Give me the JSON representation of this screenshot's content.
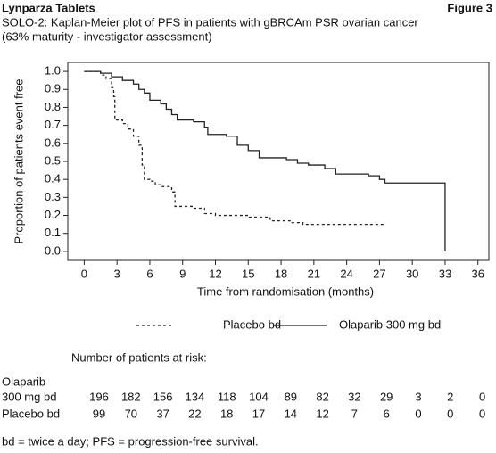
{
  "chart_data": {
    "type": "line",
    "header": "Lynparza Tablets",
    "figure_label": "Figure 3",
    "title": "SOLO-2: Kaplan-Meier plot of PFS in patients with gBRCAm PSR ovarian cancer",
    "subtitle": "(63% maturity - investigator assessment)",
    "y_label": "Proportion of patients event free",
    "x_label": "Time from randomisation (months)",
    "xlim": [
      -1.5,
      37
    ],
    "ylim": [
      -0.05,
      1.05
    ],
    "xticks": [
      0,
      3,
      6,
      9,
      12,
      15,
      18,
      21,
      24,
      27,
      30,
      33,
      36
    ],
    "yticks": [
      {
        "value": 0,
        "label": "0.0"
      },
      0.1,
      0.2,
      0.3,
      0.4,
      0.5,
      0.6,
      0.7,
      0.8,
      0.9,
      {
        "value": 1,
        "label": "1.0"
      }
    ],
    "series": [
      {
        "name": "Placebo bd",
        "color": "#222222",
        "dash": "dashed",
        "x": [
          0,
          1.5,
          1.5,
          2,
          2,
          2.5,
          2.5,
          2.7,
          2.7,
          2.8,
          2.8,
          3.5,
          3.5,
          4,
          4,
          4.5,
          4.5,
          5,
          5,
          5.3,
          5.3,
          5.5,
          5.5,
          6,
          6,
          6.5,
          6.5,
          7,
          7,
          8,
          8,
          8.3,
          8.3,
          10,
          10,
          11,
          11,
          12,
          12,
          15,
          15,
          17,
          17,
          19,
          19,
          20,
          20,
          27.5
        ],
        "values": [
          1,
          1,
          0.98,
          0.98,
          0.96,
          0.96,
          0.91,
          0.91,
          0.86,
          0.86,
          0.73,
          0.73,
          0.71,
          0.71,
          0.68,
          0.68,
          0.64,
          0.64,
          0.59,
          0.59,
          0.48,
          0.48,
          0.4,
          0.4,
          0.39,
          0.39,
          0.37,
          0.37,
          0.36,
          0.36,
          0.33,
          0.33,
          0.25,
          0.25,
          0.24,
          0.24,
          0.21,
          0.21,
          0.2,
          0.2,
          0.19,
          0.19,
          0.17,
          0.17,
          0.16,
          0.16,
          0.15,
          0.15
        ]
      },
      {
        "name": "Olaparib 300 mg bd",
        "color": "#222222",
        "dash": "solid",
        "x": [
          0,
          1.5,
          1.5,
          2.5,
          2.5,
          3.5,
          3.5,
          4.5,
          4.5,
          5,
          5,
          5.5,
          5.5,
          6,
          6,
          7,
          7,
          7.5,
          7.5,
          8,
          8,
          8.5,
          8.5,
          10,
          10,
          11,
          11,
          11.3,
          11.3,
          13,
          13,
          14,
          14,
          15,
          15,
          16,
          16,
          18.5,
          18.5,
          19.5,
          19.5,
          20.5,
          20.5,
          22,
          22,
          23,
          23,
          26,
          26,
          27,
          27,
          27.5,
          27.5,
          33,
          33
        ],
        "values": [
          1,
          1,
          0.99,
          0.99,
          0.97,
          0.97,
          0.95,
          0.95,
          0.93,
          0.93,
          0.9,
          0.9,
          0.88,
          0.88,
          0.84,
          0.84,
          0.82,
          0.82,
          0.79,
          0.79,
          0.76,
          0.76,
          0.73,
          0.73,
          0.72,
          0.72,
          0.69,
          0.69,
          0.65,
          0.65,
          0.64,
          0.64,
          0.59,
          0.59,
          0.56,
          0.56,
          0.52,
          0.52,
          0.51,
          0.51,
          0.49,
          0.49,
          0.48,
          0.48,
          0.46,
          0.46,
          0.43,
          0.43,
          0.42,
          0.42,
          0.4,
          0.4,
          0.38,
          0.38,
          0
        ]
      }
    ],
    "at_risk": {
      "title": "Number of patients at risk:",
      "rows": [
        {
          "label": [
            "Olaparib",
            "300 mg bd"
          ],
          "values": [
            196,
            182,
            156,
            134,
            118,
            104,
            89,
            82,
            32,
            29,
            3,
            2,
            0
          ]
        },
        {
          "label": [
            "Placebo bd"
          ],
          "values": [
            99,
            70,
            37,
            22,
            18,
            17,
            14,
            12,
            7,
            6,
            0,
            0,
            0
          ]
        }
      ]
    },
    "footnote": "bd = twice a day; PFS = progression-free survival."
  }
}
